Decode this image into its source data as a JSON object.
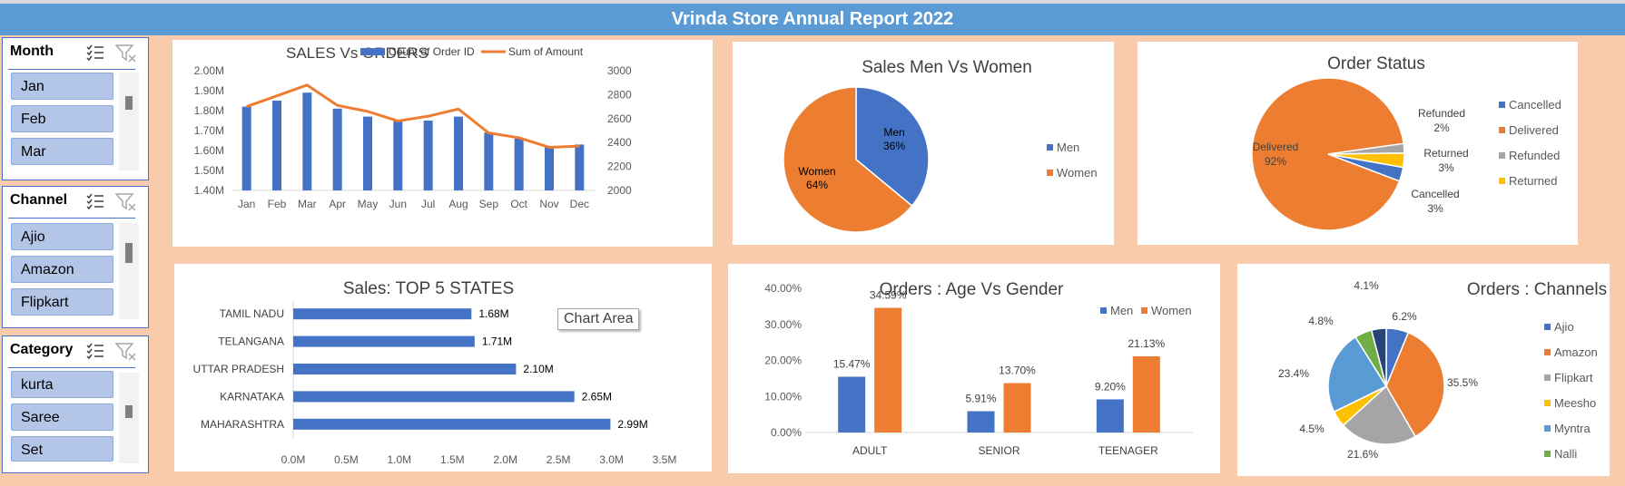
{
  "title": "Vrinda Store Annual Report 2022",
  "tooltip": "Chart Area",
  "slicers": [
    {
      "header": "Month",
      "items": [
        "Jan",
        "Feb",
        "Mar"
      ]
    },
    {
      "header": "Channel",
      "items": [
        "Ajio",
        "Amazon",
        "Flipkart"
      ]
    },
    {
      "header": "Category",
      "items": [
        "kurta",
        "Saree",
        "Set"
      ]
    }
  ],
  "chart_data": [
    {
      "id": "sales_orders",
      "type": "bar+line",
      "title": "SALES Vs ORDERS",
      "categories": [
        "Jan",
        "Feb",
        "Mar",
        "Apr",
        "May",
        "Jun",
        "Jul",
        "Aug",
        "Sep",
        "Oct",
        "Nov",
        "Dec"
      ],
      "series": [
        {
          "name": "Count of Order ID",
          "type": "bar",
          "axis": "left",
          "color": "#4472c4",
          "values": [
            1.82,
            1.85,
            1.89,
            1.81,
            1.77,
            1.75,
            1.75,
            1.77,
            1.69,
            1.66,
            1.62,
            1.63
          ]
        },
        {
          "name": "Sum of Amount",
          "type": "line",
          "axis": "right",
          "color": "#ed7d31",
          "values": [
            2700,
            2790,
            2880,
            2710,
            2660,
            2580,
            2620,
            2680,
            2480,
            2440,
            2360,
            2370
          ]
        }
      ],
      "ylim_left": [
        1.4,
        2.0
      ],
      "yticks_left": [
        "1.40M",
        "1.50M",
        "1.60M",
        "1.70M",
        "1.80M",
        "1.90M",
        "2.00M"
      ],
      "ylim_right": [
        2000,
        3000
      ],
      "yticks_right": [
        "2000",
        "2200",
        "2400",
        "2600",
        "2800",
        "3000"
      ],
      "legend": "top"
    },
    {
      "id": "men_women",
      "type": "pie",
      "title": "Sales Men Vs Women",
      "slices": [
        {
          "label": "Men",
          "value": 36,
          "text": "36%",
          "color": "#4472c4"
        },
        {
          "label": "Women",
          "value": 64,
          "text": "64%",
          "color": "#ed7d31"
        }
      ],
      "legend": "right"
    },
    {
      "id": "order_status",
      "type": "pie",
      "title": "Order Status",
      "slices": [
        {
          "label": "Cancelled",
          "value": 3,
          "text": "3%",
          "color": "#4472c4"
        },
        {
          "label": "Delivered",
          "value": 92,
          "text": "92%",
          "color": "#ed7d31"
        },
        {
          "label": "Refunded",
          "value": 2,
          "text": "2%",
          "color": "#a5a5a5"
        },
        {
          "label": "Returned",
          "value": 3,
          "text": "3%",
          "color": "#ffc000"
        }
      ],
      "legend": "right"
    },
    {
      "id": "top_states",
      "type": "bar",
      "orientation": "horizontal",
      "title": "Sales: TOP 5 STATES",
      "categories": [
        "TAMIL NADU",
        "TELANGANA",
        "UTTAR PRADESH",
        "KARNATAKA",
        "MAHARASHTRA"
      ],
      "values": [
        1.68,
        1.71,
        2.1,
        2.65,
        2.99
      ],
      "labels": [
        "1.68M",
        "1.71M",
        "2.10M",
        "2.65M",
        "2.99M"
      ],
      "xlim": [
        0,
        3.5
      ],
      "xticks": [
        "0.0M",
        "0.5M",
        "1.0M",
        "1.5M",
        "2.0M",
        "2.5M",
        "3.0M",
        "3.5M"
      ],
      "color": "#4472c4"
    },
    {
      "id": "age_gender",
      "type": "bar",
      "title": "Orders : Age Vs Gender",
      "categories": [
        "ADULT",
        "SENIOR",
        "TEENAGER"
      ],
      "series": [
        {
          "name": "Men",
          "color": "#4472c4",
          "values": [
            15.47,
            5.91,
            9.2
          ],
          "labels": [
            "15.47%",
            "5.91%",
            "9.20%"
          ]
        },
        {
          "name": "Women",
          "color": "#ed7d31",
          "values": [
            34.59,
            13.7,
            21.13
          ],
          "labels": [
            "34.59%",
            "13.70%",
            "21.13%"
          ]
        }
      ],
      "ylim": [
        0,
        40
      ],
      "yticks": [
        "0.00%",
        "10.00%",
        "20.00%",
        "30.00%",
        "40.00%"
      ],
      "legend": "top-right"
    },
    {
      "id": "channels",
      "type": "pie",
      "title": "Orders : Channels",
      "slices": [
        {
          "label": "Ajio",
          "value": 6.2,
          "text": "6.2%",
          "color": "#4472c4"
        },
        {
          "label": "Amazon",
          "value": 35.5,
          "text": "35.5%",
          "color": "#ed7d31"
        },
        {
          "label": "Flipkart",
          "value": 21.6,
          "text": "21.6%",
          "color": "#a5a5a5"
        },
        {
          "label": "Meesho",
          "value": 4.5,
          "text": "4.5%",
          "color": "#ffc000"
        },
        {
          "label": "Myntra",
          "value": 23.4,
          "text": "23.4%",
          "color": "#5b9bd5"
        },
        {
          "label": "Nalli",
          "value": 4.8,
          "text": "4.8%",
          "color": "#70ad47"
        },
        {
          "label": "",
          "value": 4.1,
          "text": "4.1%",
          "color": "#264478"
        }
      ],
      "legend": "right"
    }
  ]
}
